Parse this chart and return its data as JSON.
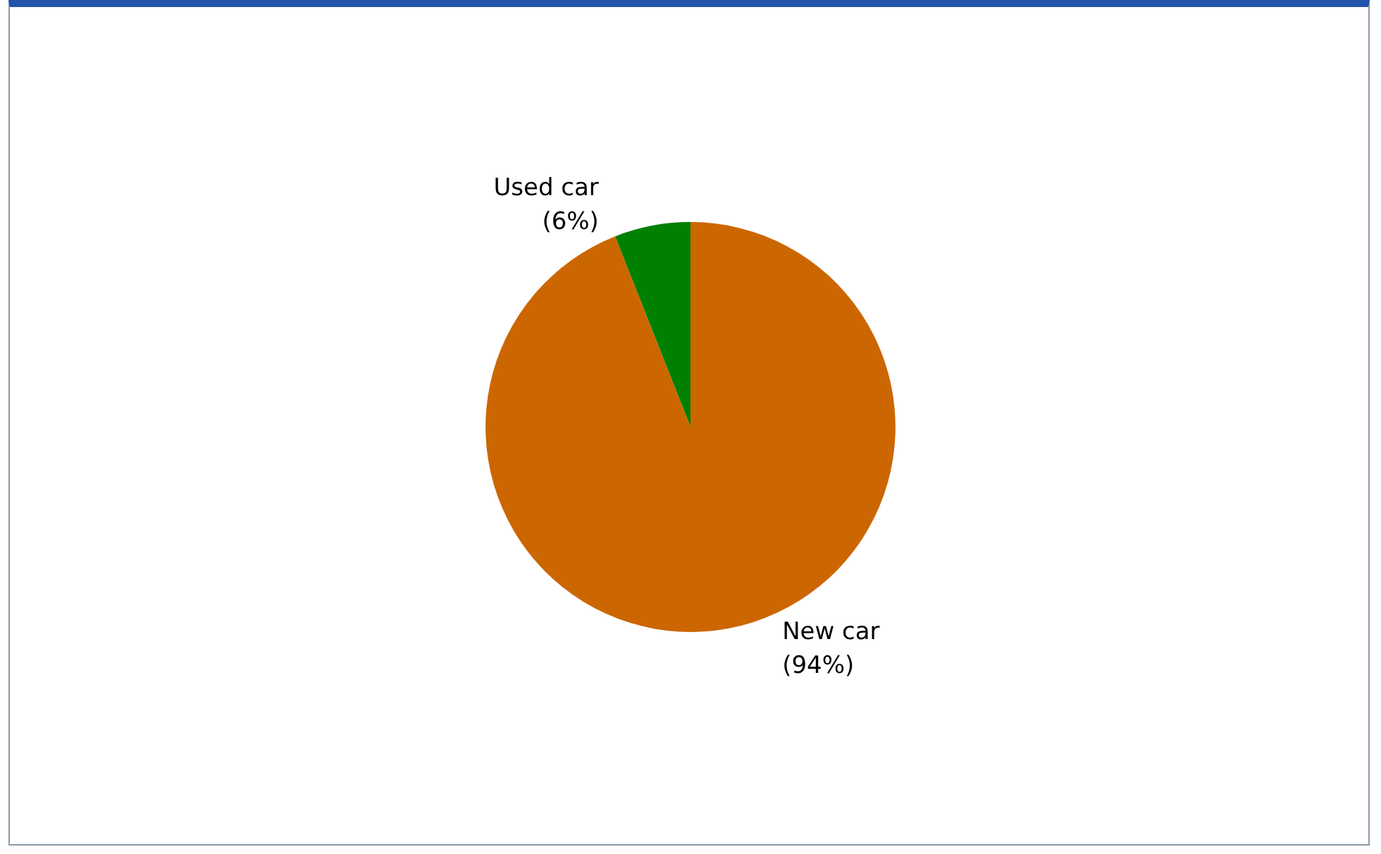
{
  "chart_data": {
    "type": "pie",
    "categories": [
      "Used car",
      "New car"
    ],
    "values": [
      6,
      94
    ],
    "colors": [
      "#008000",
      "#cc6600"
    ],
    "value_labels": [
      "(6%)",
      "(94%)"
    ]
  }
}
